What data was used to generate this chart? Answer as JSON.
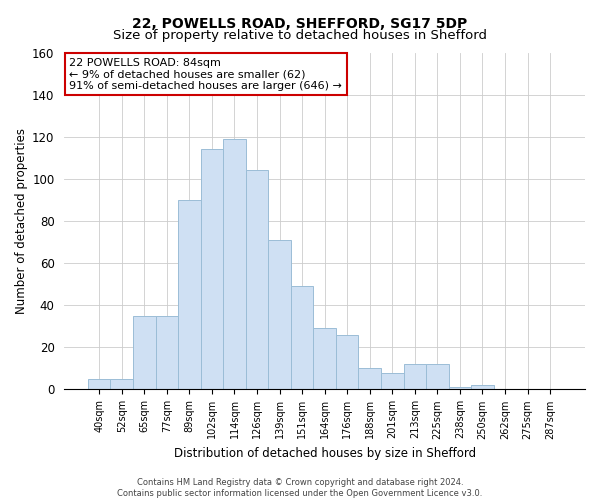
{
  "title1": "22, POWELLS ROAD, SHEFFORD, SG17 5DP",
  "title2": "Size of property relative to detached houses in Shefford",
  "xlabel": "Distribution of detached houses by size in Shefford",
  "ylabel": "Number of detached properties",
  "bar_labels": [
    "40sqm",
    "52sqm",
    "65sqm",
    "77sqm",
    "89sqm",
    "102sqm",
    "114sqm",
    "126sqm",
    "139sqm",
    "151sqm",
    "164sqm",
    "176sqm",
    "188sqm",
    "201sqm",
    "213sqm",
    "225sqm",
    "238sqm",
    "250sqm",
    "262sqm",
    "275sqm",
    "287sqm"
  ],
  "bar_values": [
    5,
    5,
    35,
    35,
    90,
    114,
    119,
    104,
    71,
    49,
    29,
    26,
    10,
    8,
    12,
    12,
    1,
    2,
    0,
    0,
    0
  ],
  "bar_color": "#cfe0f3",
  "bar_edge_color": "#9bbdd6",
  "annotation_title": "22 POWELLS ROAD: 84sqm",
  "annotation_line1": "← 9% of detached houses are smaller (62)",
  "annotation_line2": "91% of semi-detached houses are larger (646) →",
  "annotation_box_color": "#ffffff",
  "annotation_box_edge": "#cc0000",
  "ylim": [
    0,
    160
  ],
  "yticks": [
    0,
    20,
    40,
    60,
    80,
    100,
    120,
    140,
    160
  ],
  "footer1": "Contains HM Land Registry data © Crown copyright and database right 2024.",
  "footer2": "Contains public sector information licensed under the Open Government Licence v3.0."
}
